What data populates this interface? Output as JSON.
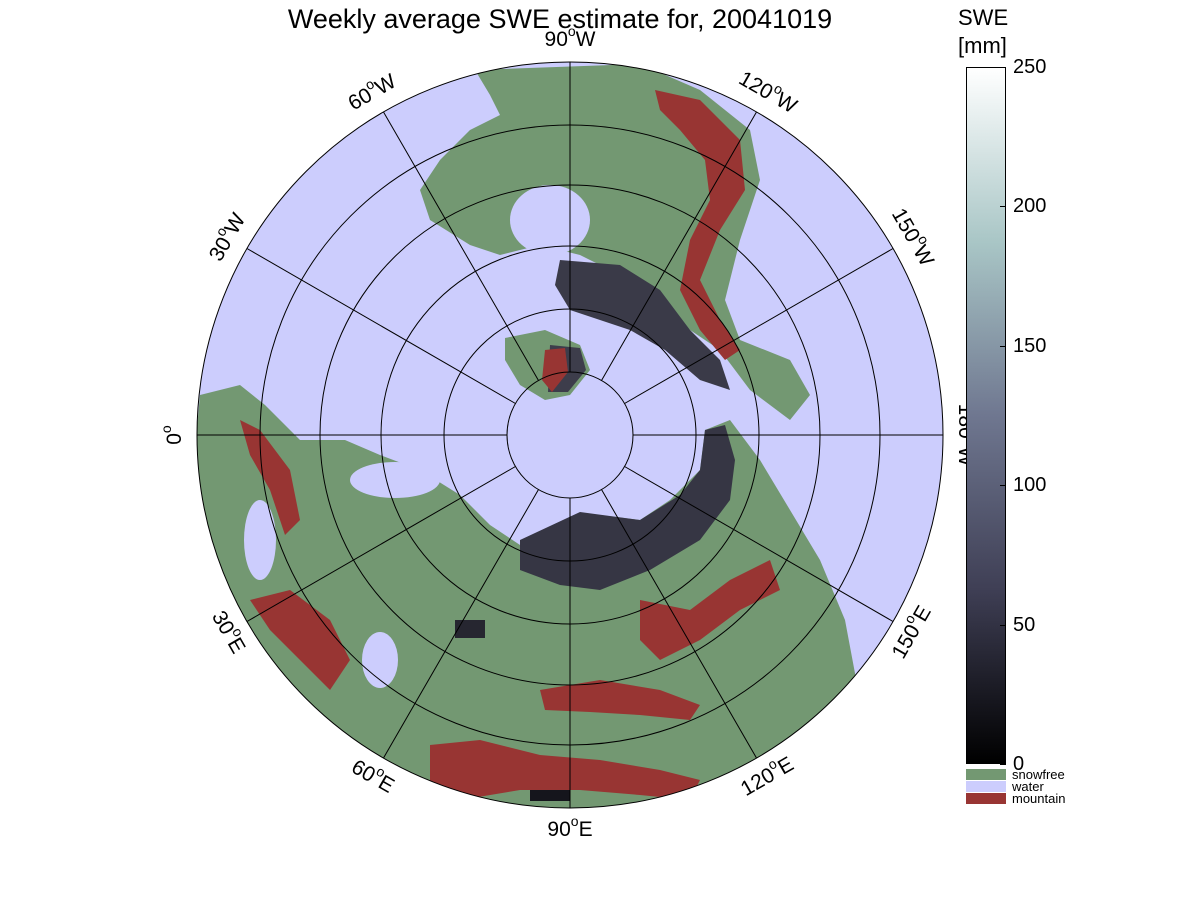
{
  "title": "Weekly average SWE estimate for, 20041019",
  "colorbar": {
    "title_line1": "SWE",
    "title_line2": "[mm]",
    "ticks": [
      "0",
      "50",
      "100",
      "150",
      "200",
      "250"
    ],
    "range": [
      0,
      250
    ],
    "gradient": [
      "#000000",
      "#3f3f55",
      "#6f7790",
      "#a9c6c6",
      "#ffffff"
    ],
    "categories": [
      {
        "label": "snowfree",
        "color": "#739872"
      },
      {
        "label": "water",
        "color": "#cccdfd"
      },
      {
        "label": "mountain",
        "color": "#983533"
      }
    ]
  },
  "map": {
    "projection": "north polar stereographic",
    "lon_labels": [
      {
        "deg": "90",
        "hemi": "W"
      },
      {
        "deg": "120",
        "hemi": "W"
      },
      {
        "deg": "150",
        "hemi": "W"
      },
      {
        "deg": "180",
        "hemi": "W"
      },
      {
        "deg": "150",
        "hemi": "E"
      },
      {
        "deg": "120",
        "hemi": "E"
      },
      {
        "deg": "90",
        "hemi": "E"
      },
      {
        "deg": "60",
        "hemi": "E"
      },
      {
        "deg": "30",
        "hemi": "E"
      },
      {
        "deg": "0",
        "hemi": ""
      },
      {
        "deg": "30",
        "hemi": "W"
      },
      {
        "deg": "60",
        "hemi": "W"
      }
    ],
    "colors": {
      "snowfree": "#739872",
      "water": "#cccdfd",
      "mountain": "#983533",
      "snow": "#3a3a48",
      "graticule": "#000000"
    }
  }
}
